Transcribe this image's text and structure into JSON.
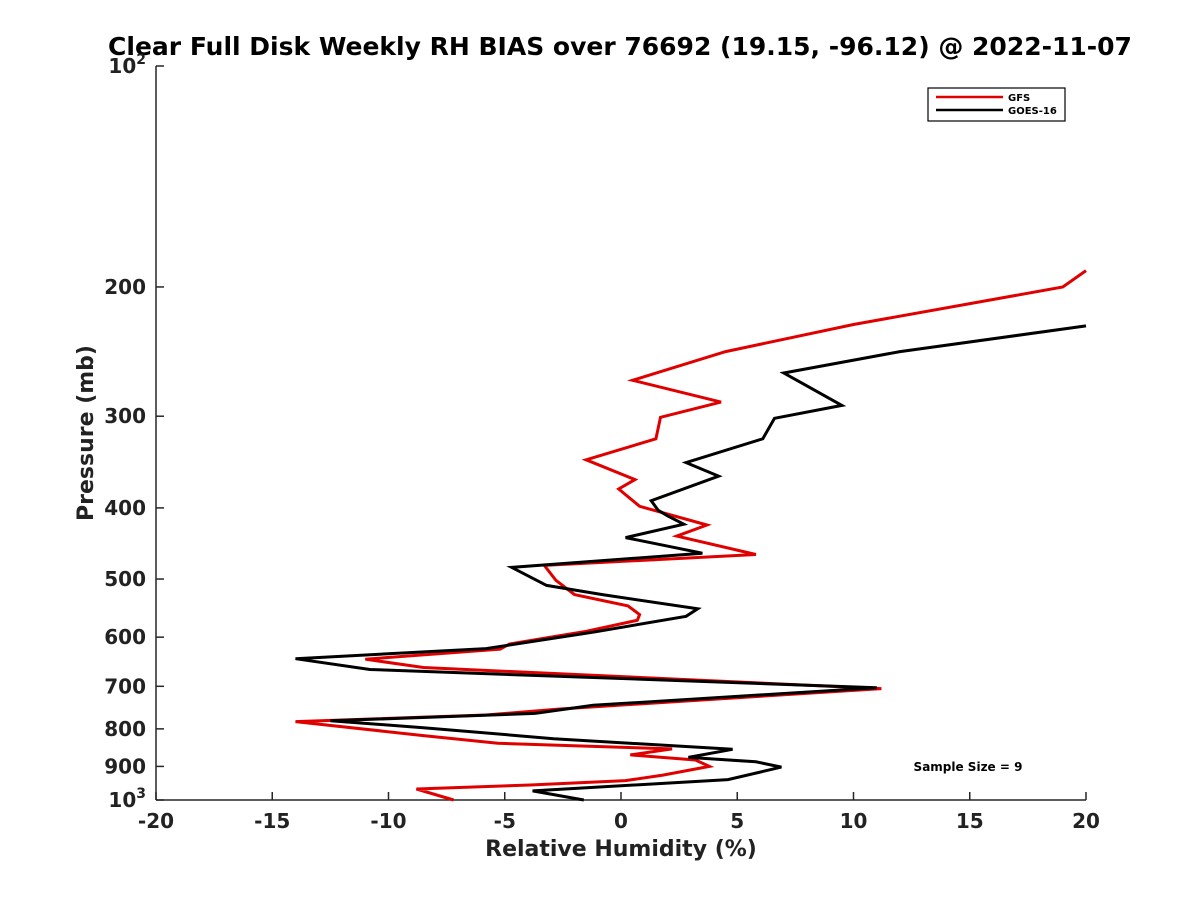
{
  "chart_data": {
    "type": "line",
    "title": "Clear Full Disk Weekly RH BIAS over 76692 (19.15, -96.12) @ 2022-11-07",
    "xlabel": "Relative Humidity (%)",
    "ylabel": "Pressure (mb)",
    "xlim": [
      -20,
      20
    ],
    "ylim": [
      1000,
      100
    ],
    "yscale": "log",
    "yreversed": true,
    "xticks": [
      -20,
      -15,
      -10,
      -5,
      0,
      5,
      10,
      15,
      20
    ],
    "xtick_labels": [
      "-20",
      "-15",
      "-10",
      "-5",
      "0",
      "5",
      "10",
      "15",
      "20"
    ],
    "yticks": [
      {
        "value": 100,
        "base": "10",
        "exp": "2"
      },
      {
        "value": 200,
        "label": "200"
      },
      {
        "value": 300,
        "label": "300"
      },
      {
        "value": 400,
        "label": "400"
      },
      {
        "value": 500,
        "label": "500"
      },
      {
        "value": 600,
        "label": "600"
      },
      {
        "value": 700,
        "label": "700"
      },
      {
        "value": 800,
        "label": "800"
      },
      {
        "value": 900,
        "label": "900"
      },
      {
        "value": 1000,
        "base": "10",
        "exp": "3"
      }
    ],
    "legend_position": "top-right",
    "annotation": "Sample Size = 9",
    "series": [
      {
        "name": "GFS",
        "color": "#e00000",
        "points": [
          [
            20.0,
            190
          ],
          [
            19.0,
            200
          ],
          [
            10.0,
            225
          ],
          [
            4.5,
            245
          ],
          [
            0.5,
            268
          ],
          [
            4.3,
            287
          ],
          [
            1.7,
            301
          ],
          [
            1.5,
            322
          ],
          [
            -1.5,
            344
          ],
          [
            0.6,
            366
          ],
          [
            -0.1,
            377
          ],
          [
            0.8,
            398
          ],
          [
            3.7,
            422
          ],
          [
            2.4,
            437
          ],
          [
            5.8,
            463
          ],
          [
            -3.3,
            479
          ],
          [
            -2.8,
            502
          ],
          [
            -2.0,
            525
          ],
          [
            0.3,
            544
          ],
          [
            0.8,
            559
          ],
          [
            0.7,
            569
          ],
          [
            -1.5,
            589
          ],
          [
            -4.8,
            613
          ],
          [
            -5.2,
            623
          ],
          [
            -11.0,
            643
          ],
          [
            -8.5,
            660
          ],
          [
            11.2,
            705
          ],
          [
            -2.7,
            752
          ],
          [
            -5.8,
            766
          ],
          [
            -14.0,
            782
          ],
          [
            -8.5,
            817
          ],
          [
            -5.3,
            837
          ],
          [
            2.2,
            852
          ],
          [
            0.4,
            868
          ],
          [
            3.2,
            882
          ],
          [
            3.8,
            900
          ],
          [
            1.8,
            925
          ],
          [
            0.2,
            941
          ],
          [
            -3.9,
            954
          ],
          [
            -8.8,
            966
          ],
          [
            -7.2,
            1000
          ]
        ]
      },
      {
        "name": "GOES-16",
        "color": "#000000",
        "points": [
          [
            20.0,
            226
          ],
          [
            12.0,
            245
          ],
          [
            7.0,
            262
          ],
          [
            9.5,
            290
          ],
          [
            6.6,
            302
          ],
          [
            6.1,
            322
          ],
          [
            2.8,
            347
          ],
          [
            4.2,
            362
          ],
          [
            1.3,
            391
          ],
          [
            1.6,
            403
          ],
          [
            2.0,
            410
          ],
          [
            2.7,
            421
          ],
          [
            0.2,
            439
          ],
          [
            3.5,
            461
          ],
          [
            -4.7,
            482
          ],
          [
            -3.2,
            510
          ],
          [
            -0.8,
            525
          ],
          [
            3.3,
            549
          ],
          [
            2.8,
            562
          ],
          [
            -1.1,
            590
          ],
          [
            -5.8,
            622
          ],
          [
            -14.0,
            642
          ],
          [
            -10.8,
            664
          ],
          [
            11.0,
            703
          ],
          [
            -1.2,
            743
          ],
          [
            -3.7,
            762
          ],
          [
            -12.5,
            780
          ],
          [
            -8.5,
            797
          ],
          [
            -2.9,
            825
          ],
          [
            4.8,
            853
          ],
          [
            2.9,
            875
          ],
          [
            5.8,
            887
          ],
          [
            6.9,
            902
          ],
          [
            4.6,
            938
          ],
          [
            -3.8,
            972
          ],
          [
            -1.6,
            1000
          ]
        ]
      }
    ]
  }
}
